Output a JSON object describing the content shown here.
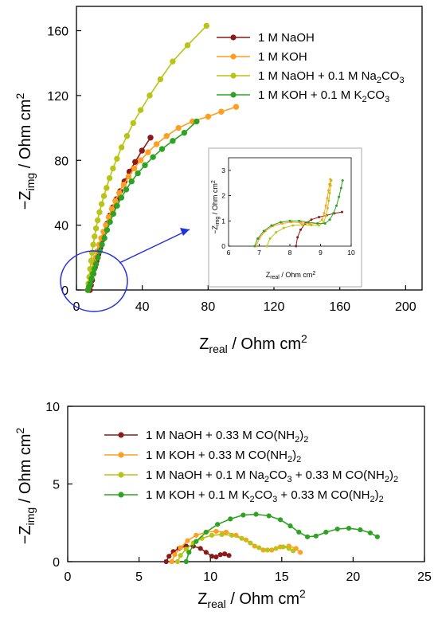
{
  "colors": {
    "naoh": "#8b1a1a",
    "koh": "#ff9e1f",
    "naoh_na2co3": "#b8c416",
    "koh_k2co3": "#2ea323",
    "highlight": "#2230e0"
  },
  "chart_data": [
    {
      "type": "line",
      "panel": "top",
      "xlabel": "Zreal / Ohm cm2",
      "ylabel": "−Zimg / Ohm cm2",
      "xlim": [
        0,
        210
      ],
      "ylim": [
        0,
        175
      ],
      "x_ticks": [
        0,
        40,
        80,
        120,
        160,
        200
      ],
      "y_ticks": [
        0,
        40,
        80,
        120,
        160
      ],
      "legend_position": "top-right",
      "series": [
        {
          "key": "naoh",
          "name": "1 M NaOH",
          "name_parts": [
            "1 M NaOH"
          ],
          "x": [
            8.2,
            8.8,
            9.5,
            10.3,
            11.2,
            12.2,
            13.3,
            14.5,
            15.8,
            17.2,
            18.7,
            20.4,
            22.2,
            24.3,
            26.6,
            29.2,
            32.2,
            35.7,
            39.8,
            45.0
          ],
          "y": [
            0,
            3,
            6,
            10,
            14,
            18,
            22,
            26,
            31,
            36,
            41,
            46,
            51,
            56,
            61,
            67,
            73,
            79,
            86,
            94
          ]
        },
        {
          "key": "koh",
          "name": "1 M KOH",
          "name_parts": [
            "1 M KOH"
          ],
          "x": [
            6.8,
            7.4,
            8.0,
            8.6,
            9.3,
            10.0,
            10.8,
            11.7,
            12.7,
            13.8,
            15.0,
            16.4,
            17.9,
            19.6,
            21.5,
            23.6,
            26.0,
            28.7,
            31.7,
            35.1,
            39.0,
            43.5,
            48.7,
            54.8,
            62.0,
            70.5,
            80.0,
            88.0,
            97.0
          ],
          "y": [
            0,
            2,
            4,
            7,
            10,
            13,
            16,
            20,
            24,
            28,
            32,
            36,
            40,
            45,
            50,
            55,
            60,
            65,
            70,
            75,
            80,
            85,
            90,
            95,
            100,
            104,
            107,
            110,
            113
          ]
        },
        {
          "key": "naoh_na2co3",
          "name": "1 M NaOH + 0.1 M Na2CO3",
          "name_parts": [
            "1 M NaOH + 0.1 M Na",
            "2",
            "CO",
            "3"
          ],
          "x": [
            6.9,
            7.3,
            7.8,
            8.3,
            8.9,
            9.5,
            10.2,
            11.0,
            11.9,
            12.9,
            14.0,
            15.3,
            16.7,
            18.3,
            20.1,
            22.2,
            24.6,
            27.4,
            30.7,
            34.5,
            39.0,
            44.5,
            51.0,
            58.5,
            67.5,
            79.0
          ],
          "y": [
            0,
            4,
            8,
            13,
            18,
            23,
            28,
            33,
            38,
            43,
            48,
            53,
            58,
            63,
            69,
            75,
            81,
            88,
            95,
            103,
            111,
            120,
            130,
            141,
            151,
            163
          ]
        },
        {
          "key": "koh_k2co3",
          "name": "1 M KOH + 0.1 M K2CO3",
          "name_parts": [
            "1 M KOH + 0.1 M K",
            "2",
            "CO",
            "3"
          ],
          "x": [
            7.0,
            7.7,
            8.4,
            9.2,
            10.0,
            10.9,
            11.9,
            13.0,
            14.2,
            15.5,
            17.0,
            18.6,
            20.4,
            22.4,
            24.7,
            27.3,
            30.2,
            33.5,
            37.3,
            41.6,
            46.5,
            52.0,
            58.5,
            65.5,
            73.0
          ],
          "y": [
            0,
            2,
            4,
            7,
            10,
            13,
            16,
            20,
            24,
            28,
            32,
            37,
            42,
            47,
            52,
            57,
            62,
            67,
            72,
            77,
            82,
            87,
            92,
            97,
            104
          ]
        }
      ],
      "inset": {
        "xlabel": "Zreal / Ohm cm2",
        "ylabel": "−Zimg / Ohm cm2",
        "xlim": [
          6,
          10
        ],
        "ylim": [
          0,
          3.5
        ],
        "x_ticks": [
          6,
          7,
          8,
          9,
          10
        ],
        "y_ticks": [
          0,
          1,
          2,
          3
        ],
        "series": [
          {
            "key": "naoh",
            "x": [
              8.2,
              8.25,
              8.35,
              8.5,
              8.7,
              8.95,
              9.2,
              9.45,
              9.7
            ],
            "y": [
              0,
              0.35,
              0.65,
              0.9,
              1.05,
              1.15,
              1.22,
              1.3,
              1.35
            ]
          },
          {
            "key": "koh",
            "x": [
              6.9,
              7.0,
              7.2,
              7.45,
              7.75,
              8.05,
              8.35,
              8.65,
              8.9,
              9.05,
              9.12,
              9.17,
              9.22,
              9.26,
              9.29,
              9.32
            ],
            "y": [
              0,
              0.3,
              0.6,
              0.8,
              0.9,
              0.95,
              0.93,
              0.88,
              0.9,
              1.05,
              1.3,
              1.6,
              1.9,
              2.2,
              2.45,
              2.65
            ]
          },
          {
            "key": "naoh_na2co3",
            "x": [
              7.25,
              7.35,
              7.55,
              7.8,
              8.1,
              8.4,
              8.7,
              8.95,
              9.1,
              9.18,
              9.23,
              9.27,
              9.3,
              9.33,
              9.35
            ],
            "y": [
              0,
              0.3,
              0.55,
              0.72,
              0.82,
              0.85,
              0.83,
              0.82,
              0.95,
              1.2,
              1.5,
              1.8,
              2.1,
              2.4,
              2.6
            ]
          },
          {
            "key": "koh_k2co3",
            "x": [
              6.85,
              6.95,
              7.15,
              7.4,
              7.7,
              8.0,
              8.3,
              8.6,
              8.9,
              9.15,
              9.3,
              9.42,
              9.52,
              9.6,
              9.67,
              9.72
            ],
            "y": [
              0,
              0.3,
              0.6,
              0.82,
              0.95,
              1.0,
              1.0,
              0.95,
              0.9,
              0.9,
              1.05,
              1.3,
              1.6,
              1.95,
              2.3,
              2.6
            ]
          }
        ]
      }
    },
    {
      "type": "line",
      "panel": "bottom",
      "xlabel": "Zreal / Ohm cm2",
      "ylabel": "−Zimg / Ohm cm2",
      "xlim": [
        0,
        25
      ],
      "ylim": [
        0,
        10
      ],
      "x_ticks": [
        0,
        5,
        10,
        15,
        20,
        25
      ],
      "y_ticks": [
        0,
        5,
        10
      ],
      "legend_position": "top-right",
      "series": [
        {
          "key": "naoh",
          "name": "1 M NaOH + 0.33 M CO(NH2)2",
          "name_parts": [
            "1 M NaOH + 0.33 M CO(NH",
            "2",
            ")",
            "2"
          ],
          "x": [
            6.9,
            7.1,
            7.4,
            7.8,
            8.3,
            8.8,
            9.3,
            9.7,
            10.1,
            10.4,
            10.7,
            11.0,
            11.3
          ],
          "y": [
            0,
            0.35,
            0.65,
            0.85,
            1.0,
            1.0,
            0.85,
            0.6,
            0.35,
            0.3,
            0.45,
            0.5,
            0.4
          ]
        },
        {
          "key": "koh",
          "name": "1 M KOH + 0.33 M CO(NH2)2",
          "name_parts": [
            "1 M KOH + 0.33 M CO(NH",
            "2",
            ")",
            "2"
          ],
          "x": [
            7.3,
            7.5,
            7.9,
            8.4,
            9.0,
            9.7,
            10.4,
            11.1,
            11.8,
            12.5,
            13.1,
            13.7,
            14.3,
            14.9,
            15.5,
            16.0,
            16.3
          ],
          "y": [
            0,
            0.45,
            0.9,
            1.35,
            1.7,
            1.9,
            1.95,
            1.9,
            1.7,
            1.4,
            1.0,
            0.75,
            0.75,
            0.95,
            1.0,
            0.85,
            0.6
          ]
        },
        {
          "key": "naoh_na2co3",
          "name": "1 M NaOH + 0.1 M Na2CO3 + 0.33 M CO(NH2)2",
          "name_parts": [
            "1 M NaOH + 0.1 M Na",
            "2",
            "CO",
            "3",
            " + 0.33 M CO(NH",
            "2",
            ")",
            "2"
          ],
          "x": [
            7.7,
            7.9,
            8.3,
            8.8,
            9.4,
            10.1,
            10.8,
            11.5,
            12.2,
            12.8,
            13.4,
            14.0,
            14.6,
            15.1,
            15.5,
            15.8
          ],
          "y": [
            0,
            0.4,
            0.8,
            1.2,
            1.5,
            1.7,
            1.75,
            1.7,
            1.5,
            1.2,
            0.9,
            0.75,
            0.85,
            0.95,
            0.85,
            0.7
          ]
        },
        {
          "key": "koh_k2co3",
          "name": "1 M KOH + 0.1 M K2CO3 + 0.33 M CO(NH2)2",
          "name_parts": [
            "1 M KOH + 0.1 M K",
            "2",
            "CO",
            "3",
            " + 0.33 M CO(NH",
            "2",
            ")",
            "2"
          ],
          "x": [
            8.3,
            8.5,
            9.0,
            9.7,
            10.5,
            11.4,
            12.3,
            13.2,
            14.1,
            14.9,
            15.6,
            16.2,
            16.8,
            17.4,
            18.1,
            18.9,
            19.7,
            20.5,
            21.2,
            21.7
          ],
          "y": [
            0,
            0.6,
            1.3,
            1.9,
            2.4,
            2.75,
            3.0,
            3.05,
            2.95,
            2.7,
            2.3,
            1.9,
            1.6,
            1.65,
            1.9,
            2.1,
            2.15,
            2.05,
            1.85,
            1.6
          ]
        }
      ]
    }
  ]
}
